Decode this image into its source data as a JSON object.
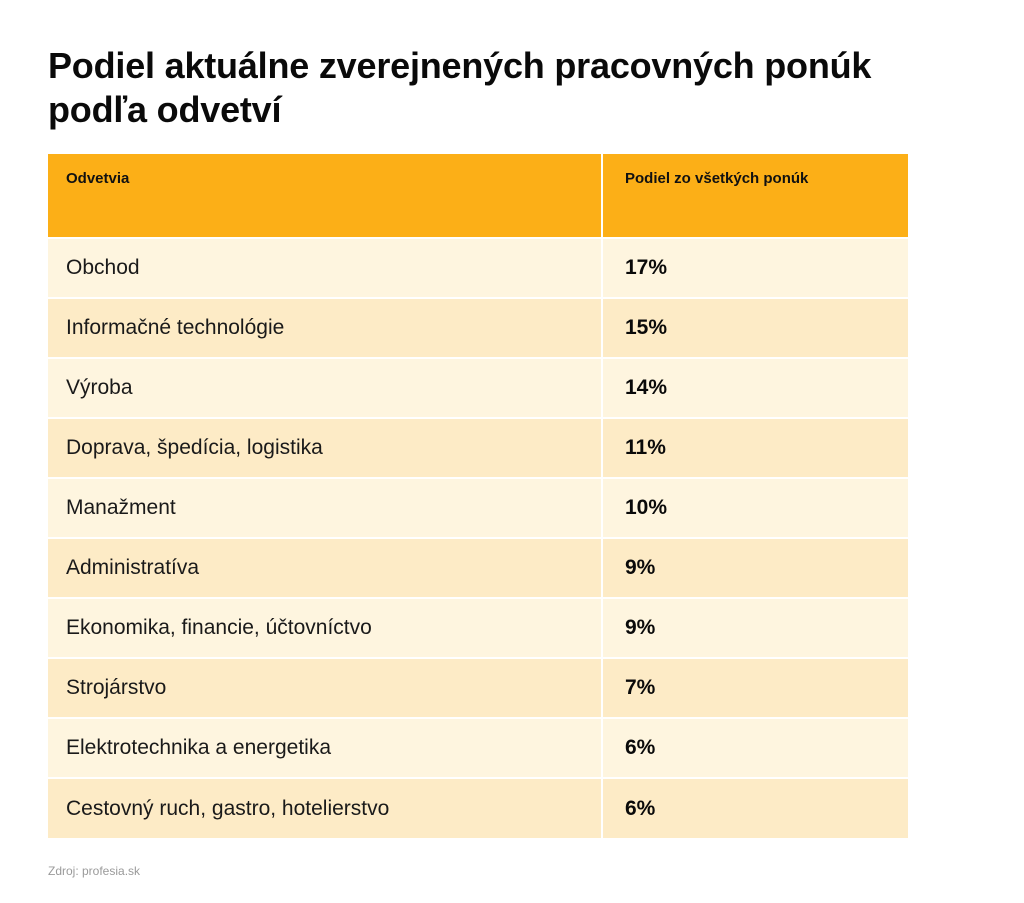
{
  "chart_data": {
    "type": "table",
    "title": "Podiel aktuálne zverejnených pracovných ponúk podľa odvetví",
    "columns": [
      "Odvetvia",
      "Podiel zo všetkých ponúk"
    ],
    "rows": [
      {
        "category": "Obchod",
        "value": "17%"
      },
      {
        "category": "Informačné technológie",
        "value": "15%"
      },
      {
        "category": "Výroba",
        "value": "14%"
      },
      {
        "category": "Doprava, špedícia, logistika",
        "value": "11%"
      },
      {
        "category": "Manažment",
        "value": "10%"
      },
      {
        "category": "Administratíva",
        "value": "9%"
      },
      {
        "category": "Ekonomika, financie, účtovníctvo",
        "value": "9%"
      },
      {
        "category": "Strojárstvo",
        "value": "7%"
      },
      {
        "category": "Elektrotechnika a energetika",
        "value": "6%"
      },
      {
        "category": "Cestovný ruch, gastro, hotelierstvo",
        "value": "6%"
      }
    ],
    "source": "Zdroj: profesia.sk"
  },
  "colors": {
    "header": "#fcaf17",
    "row_light": "#fef5df",
    "row_dark": "#fdebc6"
  }
}
